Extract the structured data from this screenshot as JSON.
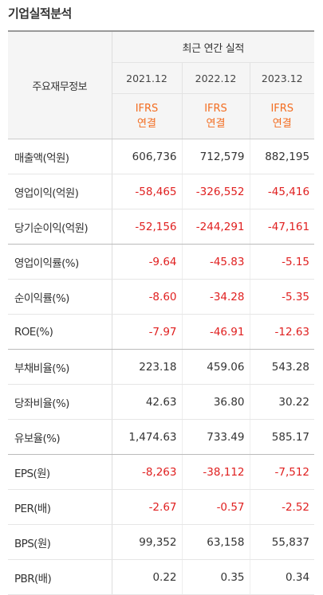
{
  "title": "기업실적분석",
  "header": {
    "row_label": "주요재무정보",
    "group_label": "최근 연간 실적",
    "years": [
      "2021.12",
      "2022.12",
      "2023.12"
    ],
    "standards": [
      {
        "line1": "IFRS",
        "line2": "연결"
      },
      {
        "line1": "IFRS",
        "line2": "연결"
      },
      {
        "line1": "IFRS",
        "line2": "연결"
      }
    ]
  },
  "rows": [
    {
      "label": "매출액(억원)",
      "values": [
        "606,736",
        "712,579",
        "882,195"
      ]
    },
    {
      "label": "영업이익(억원)",
      "values": [
        "-58,465",
        "-326,552",
        "-45,416"
      ]
    },
    {
      "label": "당기순이익(억원)",
      "values": [
        "-52,156",
        "-244,291",
        "-47,161"
      ]
    },
    {
      "label": "영업이익률(%)",
      "values": [
        "-9.64",
        "-45.83",
        "-5.15"
      ]
    },
    {
      "label": "순이익률(%)",
      "values": [
        "-8.60",
        "-34.28",
        "-5.35"
      ]
    },
    {
      "label": "ROE(%)",
      "values": [
        "-7.97",
        "-46.91",
        "-12.63"
      ]
    },
    {
      "label": "부채비율(%)",
      "values": [
        "223.18",
        "459.06",
        "543.28"
      ]
    },
    {
      "label": "당좌비율(%)",
      "values": [
        "42.63",
        "36.80",
        "30.22"
      ]
    },
    {
      "label": "유보율(%)",
      "values": [
        "1,474.63",
        "733.49",
        "585.17"
      ]
    },
    {
      "label": "EPS(원)",
      "values": [
        "-8,263",
        "-38,112",
        "-7,512"
      ]
    },
    {
      "label": "PER(배)",
      "values": [
        "-2.67",
        "-0.57",
        "-2.52"
      ]
    },
    {
      "label": "BPS(원)",
      "values": [
        "99,352",
        "63,158",
        "55,837"
      ]
    },
    {
      "label": "PBR(배)",
      "values": [
        "0.22",
        "0.35",
        "0.34"
      ]
    }
  ],
  "colors": {
    "negative": "#e02020",
    "standard_accent": "#f36d21",
    "header_bg": "#f5f5f5"
  }
}
